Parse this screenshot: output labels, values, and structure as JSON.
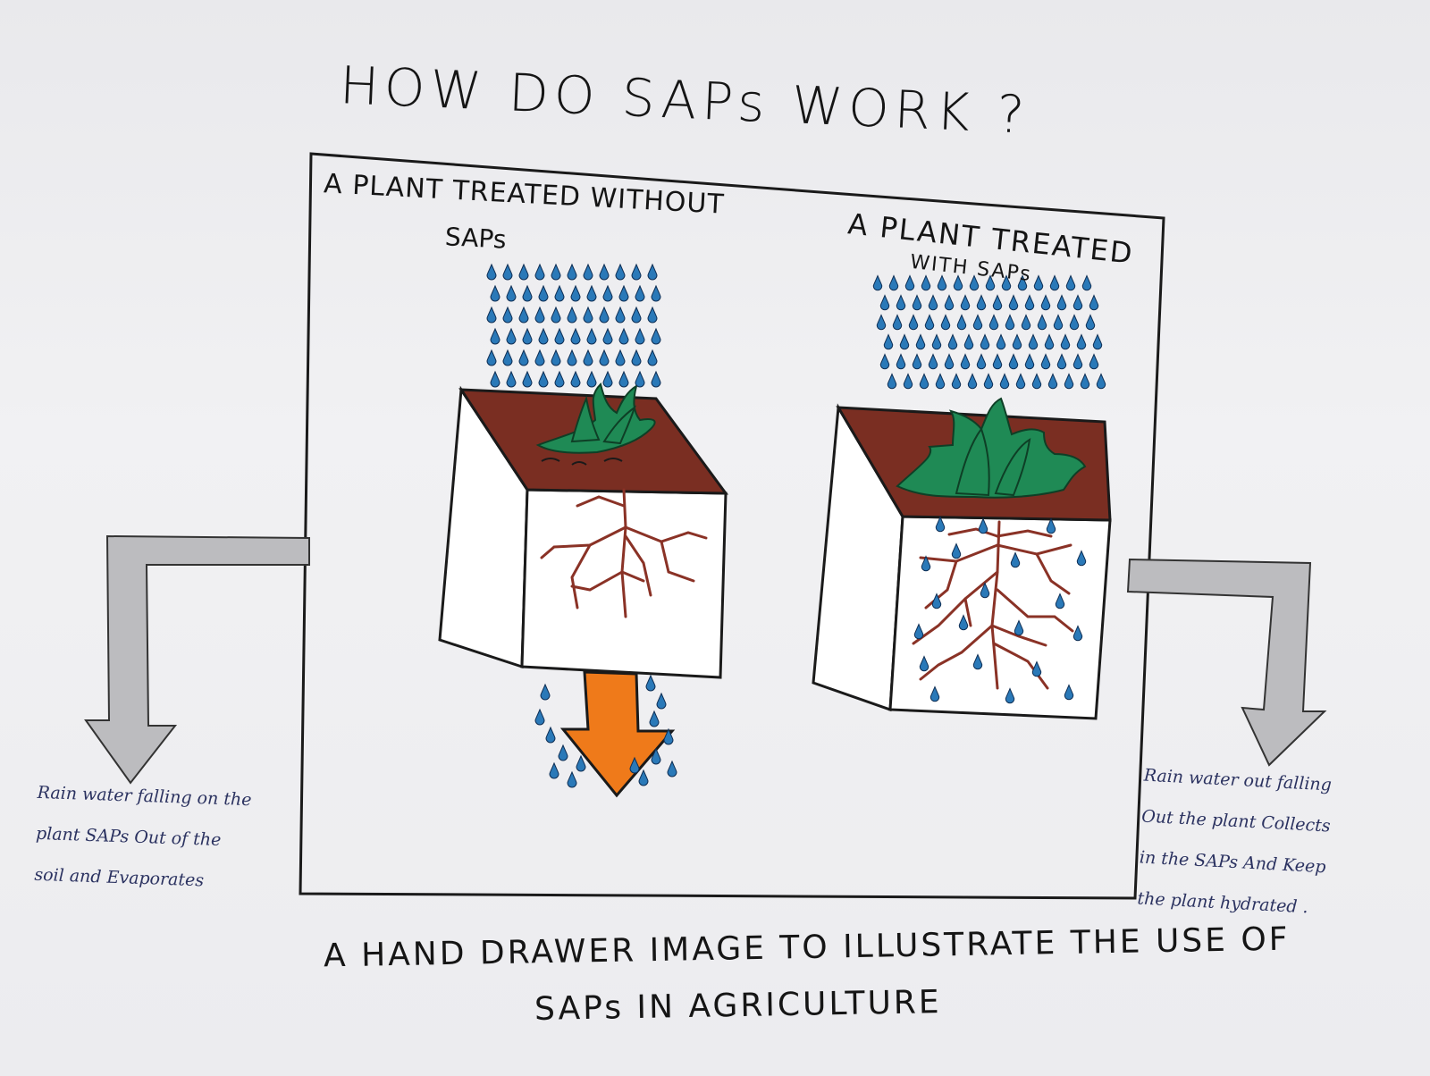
{
  "title": "HOW DO SAPs WORK ?",
  "left_panel": {
    "heading": "A PLANT TREATED WITHOUT",
    "heading_sub": "SAPs"
  },
  "right_panel": {
    "heading": "A PLANT TREATED",
    "heading_sub": "WITH SAPs"
  },
  "notes": {
    "left": [
      "Rain water falling on the",
      "plant SAPs Out of the",
      "soil and Evaporates"
    ],
    "right": [
      "Rain water out falling",
      "Out the plant Collects",
      "in the SAPs And Keep",
      "the plant hydrated ."
    ]
  },
  "caption": {
    "line1": "A HAND DRAWER IMAGE TO ILLUSTRATE THE USE OF",
    "line2": "SAPs IN AGRICULTURE"
  },
  "colors": {
    "soil": "#7a2e22",
    "leaf": "#1f8a55",
    "root": "#8a3226",
    "water": "#2a79b8",
    "arrow_orange": "#ef7a1a",
    "arrow_grey": "#b9b9bc"
  }
}
